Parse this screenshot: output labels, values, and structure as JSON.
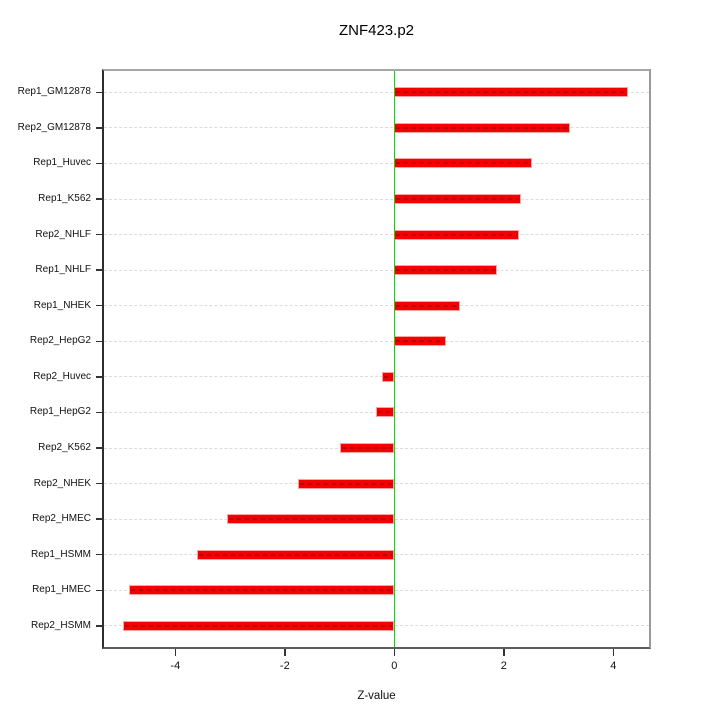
{
  "title": "ZNF423.p2",
  "chart_data": {
    "type": "bar",
    "orientation": "horizontal",
    "title": "ZNF423.p2",
    "xlabel": "Z-value",
    "categories": [
      "Rep1_GM12878",
      "Rep2_GM12878",
      "Rep1_Huvec",
      "Rep1_K562",
      "Rep2_NHLF",
      "Rep1_NHLF",
      "Rep1_NHEK",
      "Rep2_HepG2",
      "Rep2_Huvec",
      "Rep1_HepG2",
      "Rep2_K562",
      "Rep2_NHEK",
      "Rep2_HMEC",
      "Rep1_HSMM",
      "Rep1_HMEC",
      "Rep2_HSMM"
    ],
    "values": [
      4.26,
      3.21,
      2.51,
      2.31,
      2.28,
      1.87,
      1.2,
      0.94,
      -0.23,
      -0.33,
      -0.99,
      -1.75,
      -3.06,
      -3.61,
      -4.84,
      -4.95
    ],
    "xticks": [
      -4,
      -2,
      0,
      2,
      4
    ],
    "xtick_labels": [
      "-4",
      "-2",
      "0",
      "2",
      "4"
    ],
    "xlim": [
      -5.31,
      4.65
    ],
    "grid": true,
    "gridline_style": "dashed",
    "legend": "none",
    "colors": {
      "bar": "#f40000",
      "bar_border": "#ffa2a2",
      "zero_line": "#00dd00",
      "gridline": "#dcdcdc",
      "axis_text": "#111111"
    }
  }
}
